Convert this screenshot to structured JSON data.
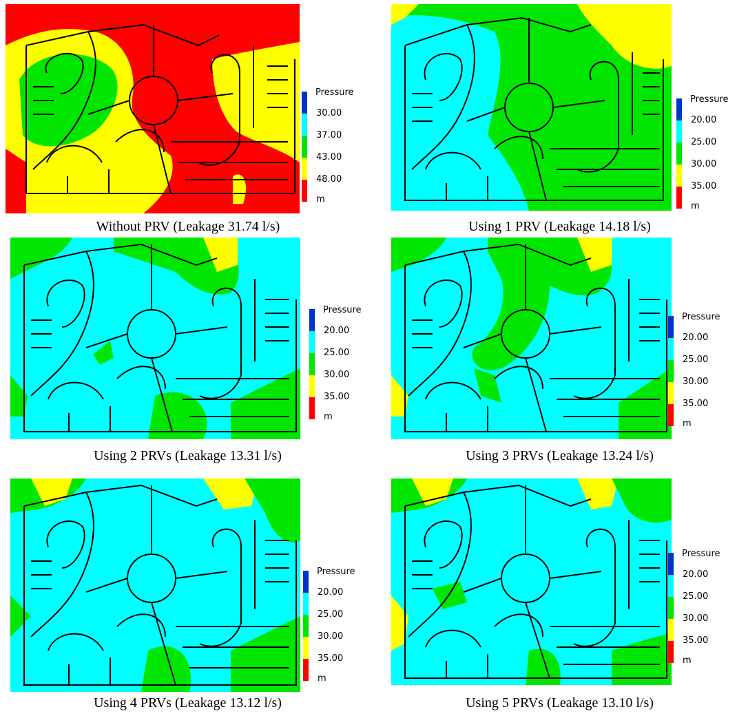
{
  "figure": {
    "colors": {
      "blue": "#0033cc",
      "cyan": "#00ffff",
      "green": "#00e600",
      "yellow": "#ffff00",
      "red": "#ff0000",
      "pipe": "#000000"
    },
    "panels": [
      {
        "caption": "Without PRV (Leakage 31.74 l/s)",
        "legend": {
          "title": "Pressure",
          "values": [
            "30.00",
            "37.00",
            "43.00",
            "48.00"
          ],
          "unit": "m"
        },
        "dominant_zone": "red / yellow"
      },
      {
        "caption": "Using 1 PRV (Leakage 14.18 l/s)",
        "legend": {
          "title": "Pressure",
          "values": [
            "20.00",
            "25.00",
            "30.00",
            "35.00"
          ],
          "unit": "m"
        },
        "dominant_zone": "green / cyan"
      },
      {
        "caption": "Using 2 PRVs (Leakage 13.31 l/s)",
        "legend": {
          "title": "Pressure",
          "values": [
            "20.00",
            "25.00",
            "30.00",
            "35.00"
          ],
          "unit": "m"
        },
        "dominant_zone": "cyan"
      },
      {
        "caption": "Using 3 PRVs (Leakage 13.24 l/s)",
        "legend": {
          "title": "Pressure",
          "values": [
            "20.00",
            "25.00",
            "30.00",
            "35.00"
          ],
          "unit": "m"
        },
        "dominant_zone": "cyan"
      },
      {
        "caption": "Using 4 PRVs (Leakage 13.12 l/s)",
        "legend": {
          "title": "Pressure",
          "values": [
            "20.00",
            "25.00",
            "30.00",
            "35.00"
          ],
          "unit": "m"
        },
        "dominant_zone": "cyan"
      },
      {
        "caption": "Using 5 PRVs (Leakage 13.10 l/s)",
        "legend": {
          "title": "Pressure",
          "values": [
            "20.00",
            "25.00",
            "30.00",
            "35.00"
          ],
          "unit": "m"
        },
        "dominant_zone": "cyan"
      }
    ]
  }
}
